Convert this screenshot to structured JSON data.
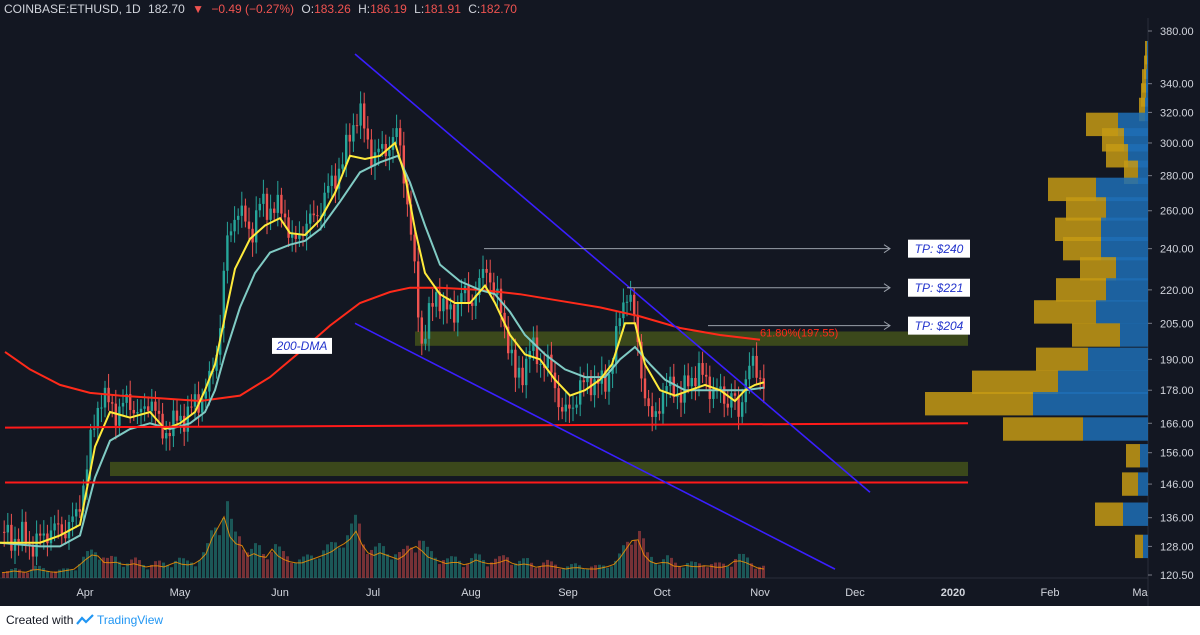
{
  "header": {
    "symbol": "COINBASE:ETHUSD, 1D",
    "last": "182.70",
    "arrow": "▼",
    "change": "−0.49 (−0.27%)",
    "o_label": "O:",
    "o": "183.26",
    "h_label": "H:",
    "h": "186.19",
    "l_label": "L:",
    "l": "181.91",
    "c_label": "C:",
    "c": "182.70"
  },
  "footer": {
    "created": "Created with",
    "brand": "TradingView"
  },
  "colors": {
    "background": "#131722",
    "up_candle": "#26a69a",
    "down_candle": "#ef5350",
    "ema_fast": "#ffeb3b",
    "ema_slow": "#80cbc4",
    "dma200": "#ff2a1a",
    "channel": "#3a1fff",
    "support": "#ff1a1a",
    "zone": "#4a5a1a",
    "vp_up": "#1e6fb5",
    "vp_down": "#c69a14"
  },
  "chart_data": {
    "type": "candlestick",
    "x_ticks": [
      "Apr",
      "May",
      "Jun",
      "Jul",
      "Aug",
      "Sep",
      "Oct",
      "Nov",
      "Dec",
      "2020",
      "Feb",
      "Ma"
    ],
    "y_ticks": [
      "380.00",
      "340.00",
      "320.00",
      "300.00",
      "280.00",
      "260.00",
      "240.00",
      "220.00",
      "205.00",
      "190.00",
      "178.00",
      "166.00",
      "156.00",
      "146.00",
      "136.00",
      "128.00",
      "120.50"
    ],
    "ylim": [
      120.5,
      380
    ],
    "y_scale": "log",
    "price_path": [
      [
        0,
        132
      ],
      [
        10,
        130
      ],
      [
        20,
        131
      ],
      [
        30,
        128
      ],
      [
        40,
        130
      ],
      [
        50,
        133
      ],
      [
        60,
        132
      ],
      [
        75,
        136
      ],
      [
        85,
        150
      ],
      [
        95,
        170
      ],
      [
        100,
        176
      ],
      [
        115,
        170
      ],
      [
        128,
        174
      ],
      [
        140,
        168
      ],
      [
        150,
        176
      ],
      [
        160,
        162
      ],
      [
        172,
        166
      ],
      [
        182,
        168
      ],
      [
        192,
        172
      ],
      [
        200,
        175
      ],
      [
        210,
        182
      ],
      [
        218,
        200
      ],
      [
        225,
        240
      ],
      [
        235,
        262
      ],
      [
        250,
        248
      ],
      [
        260,
        265
      ],
      [
        272,
        260
      ],
      [
        282,
        262
      ],
      [
        292,
        240
      ],
      [
        302,
        252
      ],
      [
        312,
        255
      ],
      [
        322,
        265
      ],
      [
        332,
        278
      ],
      [
        342,
        288
      ],
      [
        350,
        310
      ],
      [
        358,
        320
      ],
      [
        365,
        305
      ],
      [
        372,
        290
      ],
      [
        380,
        295
      ],
      [
        390,
        300
      ],
      [
        397,
        306
      ],
      [
        403,
        280
      ],
      [
        410,
        245
      ],
      [
        416,
        215
      ],
      [
        421,
        196
      ],
      [
        428,
        208
      ],
      [
        436,
        220
      ],
      [
        444,
        210
      ],
      [
        452,
        210
      ],
      [
        460,
        218
      ],
      [
        470,
        215
      ],
      [
        480,
        224
      ],
      [
        486,
        232
      ],
      [
        492,
        220
      ],
      [
        500,
        210
      ],
      [
        508,
        196
      ],
      [
        514,
        182
      ],
      [
        522,
        186
      ],
      [
        530,
        195
      ],
      [
        538,
        190
      ],
      [
        546,
        188
      ],
      [
        554,
        180
      ],
      [
        562,
        168
      ],
      [
        570,
        172
      ],
      [
        578,
        178
      ],
      [
        588,
        182
      ],
      [
        598,
        180
      ],
      [
        606,
        182
      ],
      [
        614,
        195
      ],
      [
        620,
        212
      ],
      [
        626,
        220
      ],
      [
        631,
        212
      ],
      [
        638,
        192
      ],
      [
        644,
        176
      ],
      [
        650,
        165
      ],
      [
        656,
        172
      ],
      [
        664,
        178
      ],
      [
        672,
        180
      ],
      [
        680,
        175
      ],
      [
        688,
        182
      ],
      [
        696,
        185
      ],
      [
        704,
        182
      ],
      [
        712,
        178
      ],
      [
        720,
        176
      ],
      [
        726,
        174
      ],
      [
        732,
        178
      ],
      [
        737,
        165
      ],
      [
        742,
        180
      ],
      [
        748,
        188
      ],
      [
        754,
        185
      ],
      [
        760,
        183
      ],
      [
        764,
        182.7
      ]
    ],
    "ema_fast_path": [
      [
        0,
        129
      ],
      [
        40,
        129
      ],
      [
        60,
        131
      ],
      [
        80,
        134
      ],
      [
        95,
        158
      ],
      [
        110,
        170
      ],
      [
        130,
        168
      ],
      [
        150,
        170
      ],
      [
        165,
        164
      ],
      [
        180,
        166
      ],
      [
        195,
        170
      ],
      [
        205,
        178
      ],
      [
        215,
        188
      ],
      [
        225,
        208
      ],
      [
        235,
        230
      ],
      [
        250,
        245
      ],
      [
        265,
        252
      ],
      [
        280,
        256
      ],
      [
        290,
        248
      ],
      [
        305,
        247
      ],
      [
        320,
        255
      ],
      [
        335,
        270
      ],
      [
        350,
        292
      ],
      [
        365,
        290
      ],
      [
        380,
        292
      ],
      [
        395,
        300
      ],
      [
        405,
        280
      ],
      [
        415,
        250
      ],
      [
        425,
        228
      ],
      [
        440,
        218
      ],
      [
        455,
        214
      ],
      [
        470,
        214
      ],
      [
        485,
        222
      ],
      [
        495,
        214
      ],
      [
        510,
        200
      ],
      [
        525,
        192
      ],
      [
        540,
        190
      ],
      [
        555,
        182
      ],
      [
        570,
        176
      ],
      [
        585,
        178
      ],
      [
        600,
        182
      ],
      [
        612,
        188
      ],
      [
        625,
        205
      ],
      [
        635,
        205
      ],
      [
        645,
        188
      ],
      [
        660,
        178
      ],
      [
        675,
        176
      ],
      [
        690,
        178
      ],
      [
        705,
        180
      ],
      [
        720,
        178
      ],
      [
        735,
        174
      ],
      [
        745,
        178
      ],
      [
        755,
        180
      ],
      [
        764,
        181
      ]
    ],
    "ema_slow_path": [
      [
        0,
        129
      ],
      [
        40,
        128
      ],
      [
        60,
        128
      ],
      [
        80,
        131
      ],
      [
        95,
        148
      ],
      [
        110,
        160
      ],
      [
        130,
        164
      ],
      [
        150,
        166
      ],
      [
        170,
        164
      ],
      [
        190,
        166
      ],
      [
        205,
        170
      ],
      [
        215,
        178
      ],
      [
        225,
        192
      ],
      [
        240,
        212
      ],
      [
        255,
        228
      ],
      [
        270,
        238
      ],
      [
        290,
        242
      ],
      [
        305,
        244
      ],
      [
        320,
        250
      ],
      [
        340,
        265
      ],
      [
        360,
        282
      ],
      [
        380,
        288
      ],
      [
        398,
        292
      ],
      [
        410,
        276
      ],
      [
        425,
        252
      ],
      [
        440,
        232
      ],
      [
        460,
        224
      ],
      [
        480,
        220
      ],
      [
        495,
        218
      ],
      [
        510,
        210
      ],
      [
        525,
        200
      ],
      [
        545,
        192
      ],
      [
        565,
        186
      ],
      [
        585,
        183
      ],
      [
        605,
        183
      ],
      [
        620,
        190
      ],
      [
        635,
        195
      ],
      [
        650,
        188
      ],
      [
        665,
        182
      ],
      [
        685,
        178
      ],
      [
        705,
        178
      ],
      [
        725,
        178
      ],
      [
        745,
        178
      ],
      [
        764,
        179
      ]
    ],
    "dma200_path": [
      [
        5,
        193
      ],
      [
        30,
        186
      ],
      [
        60,
        180
      ],
      [
        90,
        177
      ],
      [
        120,
        176
      ],
      [
        160,
        175
      ],
      [
        200,
        174
      ],
      [
        240,
        176
      ],
      [
        270,
        183
      ],
      [
        300,
        193
      ],
      [
        330,
        204
      ],
      [
        360,
        214
      ],
      [
        390,
        219
      ],
      [
        410,
        221
      ],
      [
        440,
        221
      ],
      [
        480,
        220
      ],
      [
        520,
        218
      ],
      [
        560,
        215
      ],
      [
        600,
        212
      ],
      [
        640,
        208
      ],
      [
        680,
        203
      ],
      [
        720,
        200
      ],
      [
        760,
        198
      ]
    ],
    "volume": [
      [
        5,
        3
      ],
      [
        15,
        4
      ],
      [
        25,
        3
      ],
      [
        35,
        5
      ],
      [
        45,
        4
      ],
      [
        55,
        3
      ],
      [
        65,
        4
      ],
      [
        75,
        5
      ],
      [
        85,
        10
      ],
      [
        95,
        14
      ],
      [
        105,
        8
      ],
      [
        115,
        9
      ],
      [
        125,
        7
      ],
      [
        135,
        8
      ],
      [
        145,
        6
      ],
      [
        155,
        7
      ],
      [
        165,
        6
      ],
      [
        175,
        9
      ],
      [
        185,
        7
      ],
      [
        195,
        8
      ],
      [
        205,
        12
      ],
      [
        212,
        22
      ],
      [
        218,
        28
      ],
      [
        225,
        35
      ],
      [
        232,
        18
      ],
      [
        240,
        20
      ],
      [
        248,
        12
      ],
      [
        256,
        14
      ],
      [
        264,
        10
      ],
      [
        272,
        16
      ],
      [
        280,
        11
      ],
      [
        290,
        9
      ],
      [
        300,
        8
      ],
      [
        310,
        10
      ],
      [
        320,
        12
      ],
      [
        330,
        14
      ],
      [
        340,
        18
      ],
      [
        348,
        20
      ],
      [
        356,
        26
      ],
      [
        364,
        16
      ],
      [
        372,
        12
      ],
      [
        380,
        14
      ],
      [
        390,
        12
      ],
      [
        400,
        10
      ],
      [
        410,
        16
      ],
      [
        418,
        18
      ],
      [
        426,
        12
      ],
      [
        436,
        10
      ],
      [
        446,
        8
      ],
      [
        456,
        9
      ],
      [
        466,
        7
      ],
      [
        476,
        10
      ],
      [
        486,
        8
      ],
      [
        496,
        8
      ],
      [
        506,
        10
      ],
      [
        516,
        7
      ],
      [
        526,
        8
      ],
      [
        536,
        6
      ],
      [
        546,
        7
      ],
      [
        556,
        6
      ],
      [
        566,
        5
      ],
      [
        576,
        6
      ],
      [
        586,
        5
      ],
      [
        596,
        5
      ],
      [
        606,
        6
      ],
      [
        616,
        8
      ],
      [
        626,
        16
      ],
      [
        636,
        24
      ],
      [
        646,
        10
      ],
      [
        656,
        8
      ],
      [
        666,
        9
      ],
      [
        676,
        6
      ],
      [
        686,
        7
      ],
      [
        696,
        6
      ],
      [
        706,
        7
      ],
      [
        716,
        6
      ],
      [
        726,
        6
      ],
      [
        736,
        10
      ],
      [
        744,
        9
      ],
      [
        752,
        7
      ],
      [
        760,
        5
      ]
    ],
    "volume_profile": [
      {
        "price": 363,
        "up": 1,
        "down": 2
      },
      {
        "price": 352,
        "up": 1,
        "down": 3
      },
      {
        "price": 342,
        "up": 2,
        "down": 4
      },
      {
        "price": 332,
        "up": 2,
        "down": 5
      },
      {
        "price": 322,
        "up": 3,
        "down": 6
      },
      {
        "price": 312,
        "up": 30,
        "down": 32
      },
      {
        "price": 302,
        "up": 24,
        "down": 22
      },
      {
        "price": 292,
        "up": 20,
        "down": 22
      },
      {
        "price": 282,
        "up": 10,
        "down": 14
      },
      {
        "price": 272,
        "up": 52,
        "down": 48
      },
      {
        "price": 261,
        "up": 42,
        "down": 40
      },
      {
        "price": 250,
        "up": 47,
        "down": 46
      },
      {
        "price": 240,
        "up": 47,
        "down": 38
      },
      {
        "price": 230,
        "up": 32,
        "down": 36
      },
      {
        "price": 220,
        "up": 42,
        "down": 50
      },
      {
        "price": 210,
        "up": 52,
        "down": 62
      },
      {
        "price": 200,
        "up": 28,
        "down": 48
      },
      {
        "price": 190,
        "up": 60,
        "down": 52
      },
      {
        "price": 181,
        "up": 90,
        "down": 86
      },
      {
        "price": 173,
        "up": 115,
        "down": 108
      },
      {
        "price": 164,
        "up": 65,
        "down": 80
      },
      {
        "price": 155,
        "up": 8,
        "down": 14
      },
      {
        "price": 146,
        "up": 10,
        "down": 16
      },
      {
        "price": 137,
        "up": 25,
        "down": 28
      },
      {
        "price": 128,
        "up": 5,
        "down": 8
      }
    ],
    "channel_upper": [
      [
        355,
        362
      ],
      [
        870,
        143.5
      ]
    ],
    "channel_lower": [
      [
        355,
        205
      ],
      [
        835,
        122
      ]
    ],
    "support_lines": [
      {
        "x_from": 5,
        "x_to": 968,
        "price_from": 164.5,
        "price_to": 166
      },
      {
        "x_from": 5,
        "x_to": 968,
        "price_from": 146.5,
        "price_to": 146.5
      }
    ],
    "zones": [
      {
        "x_from": 415,
        "x_to": 968,
        "top": 201.5,
        "bottom": 195.5
      },
      {
        "x_from": 110,
        "x_to": 968,
        "top": 153,
        "bottom": 148.5
      }
    ],
    "targets": [
      {
        "label": "TP: $240",
        "price": 240,
        "x_from": 484,
        "x_to": 890
      },
      {
        "label": "TP: $221",
        "price": 221,
        "x_from": 627,
        "x_to": 890
      },
      {
        "label": "TP: $204",
        "price": 204,
        "x_from": 708,
        "x_to": 890
      }
    ],
    "annotations": [
      {
        "text": "200-DMA",
        "price": 193,
        "x": 272
      },
      {
        "text": "61.80%(197.55)",
        "price": 201,
        "x": 760
      }
    ]
  }
}
